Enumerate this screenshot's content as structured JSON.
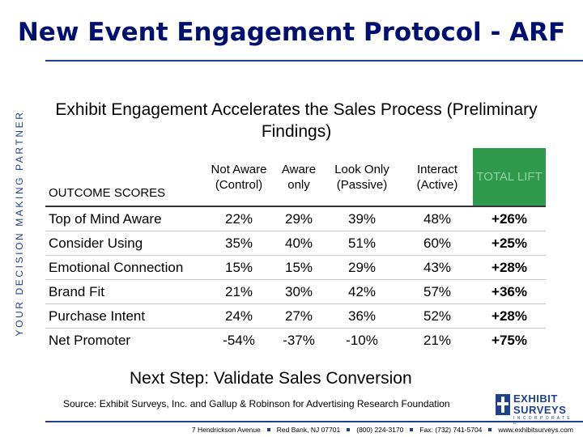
{
  "sidebar_text": "YOUR DECISION MAKING PARTNER",
  "title": "New Event Engagement Protocol - ARF",
  "subtitle": "Exhibit Engagement Accelerates the Sales Process (Preliminary Findings)",
  "table": {
    "columns": [
      "OUTCOME SCORES",
      "Not Aware (Control)",
      "Aware only",
      "Look Only (Passive)",
      "Interact (Active)",
      "TOTAL LIFT"
    ],
    "rows": [
      {
        "label": "Top of Mind Aware",
        "not_aware": "22%",
        "aware_only": "29%",
        "look_only": "39%",
        "interact": "48%",
        "total_lift": "+26%"
      },
      {
        "label": "Consider Using",
        "not_aware": "35%",
        "aware_only": "40%",
        "look_only": "51%",
        "interact": "60%",
        "total_lift": "+25%"
      },
      {
        "label": "Emotional Connection",
        "not_aware": "15%",
        "aware_only": "15%",
        "look_only": "29%",
        "interact": "43%",
        "total_lift": "+28%"
      },
      {
        "label": "Brand Fit",
        "not_aware": "21%",
        "aware_only": "30%",
        "look_only": "42%",
        "interact": "57%",
        "total_lift": "+36%"
      },
      {
        "label": "Purchase Intent",
        "not_aware": "24%",
        "aware_only": "27%",
        "look_only": "36%",
        "interact": "52%",
        "total_lift": "+28%"
      },
      {
        "label": "Net Promoter",
        "not_aware": "-54%",
        "aware_only": "-37%",
        "look_only": "-10%",
        "interact": "21%",
        "total_lift": "+75%"
      }
    ]
  },
  "next_step": "Next Step: Validate Sales Conversion",
  "source": "Source: Exhibit Surveys, Inc. and Gallup & Robinson for Advertising Research Foundation",
  "logo": {
    "line1": "EXHIBIT",
    "line2": "SURVEYS",
    "tagline": "I N C O R P O R A T E D"
  },
  "footer": {
    "address": "7 Hendrickson Avenue",
    "city": "Red Bank, NJ 07701",
    "phone": "(800) 224-3170",
    "fax": "Fax: (732) 741-5704",
    "website": "www.exhibitsurveys.com"
  },
  "colors": {
    "brand_blue": "#1f3f8f",
    "title_navy": "#001070",
    "lift_green": "#2f9a4c"
  }
}
